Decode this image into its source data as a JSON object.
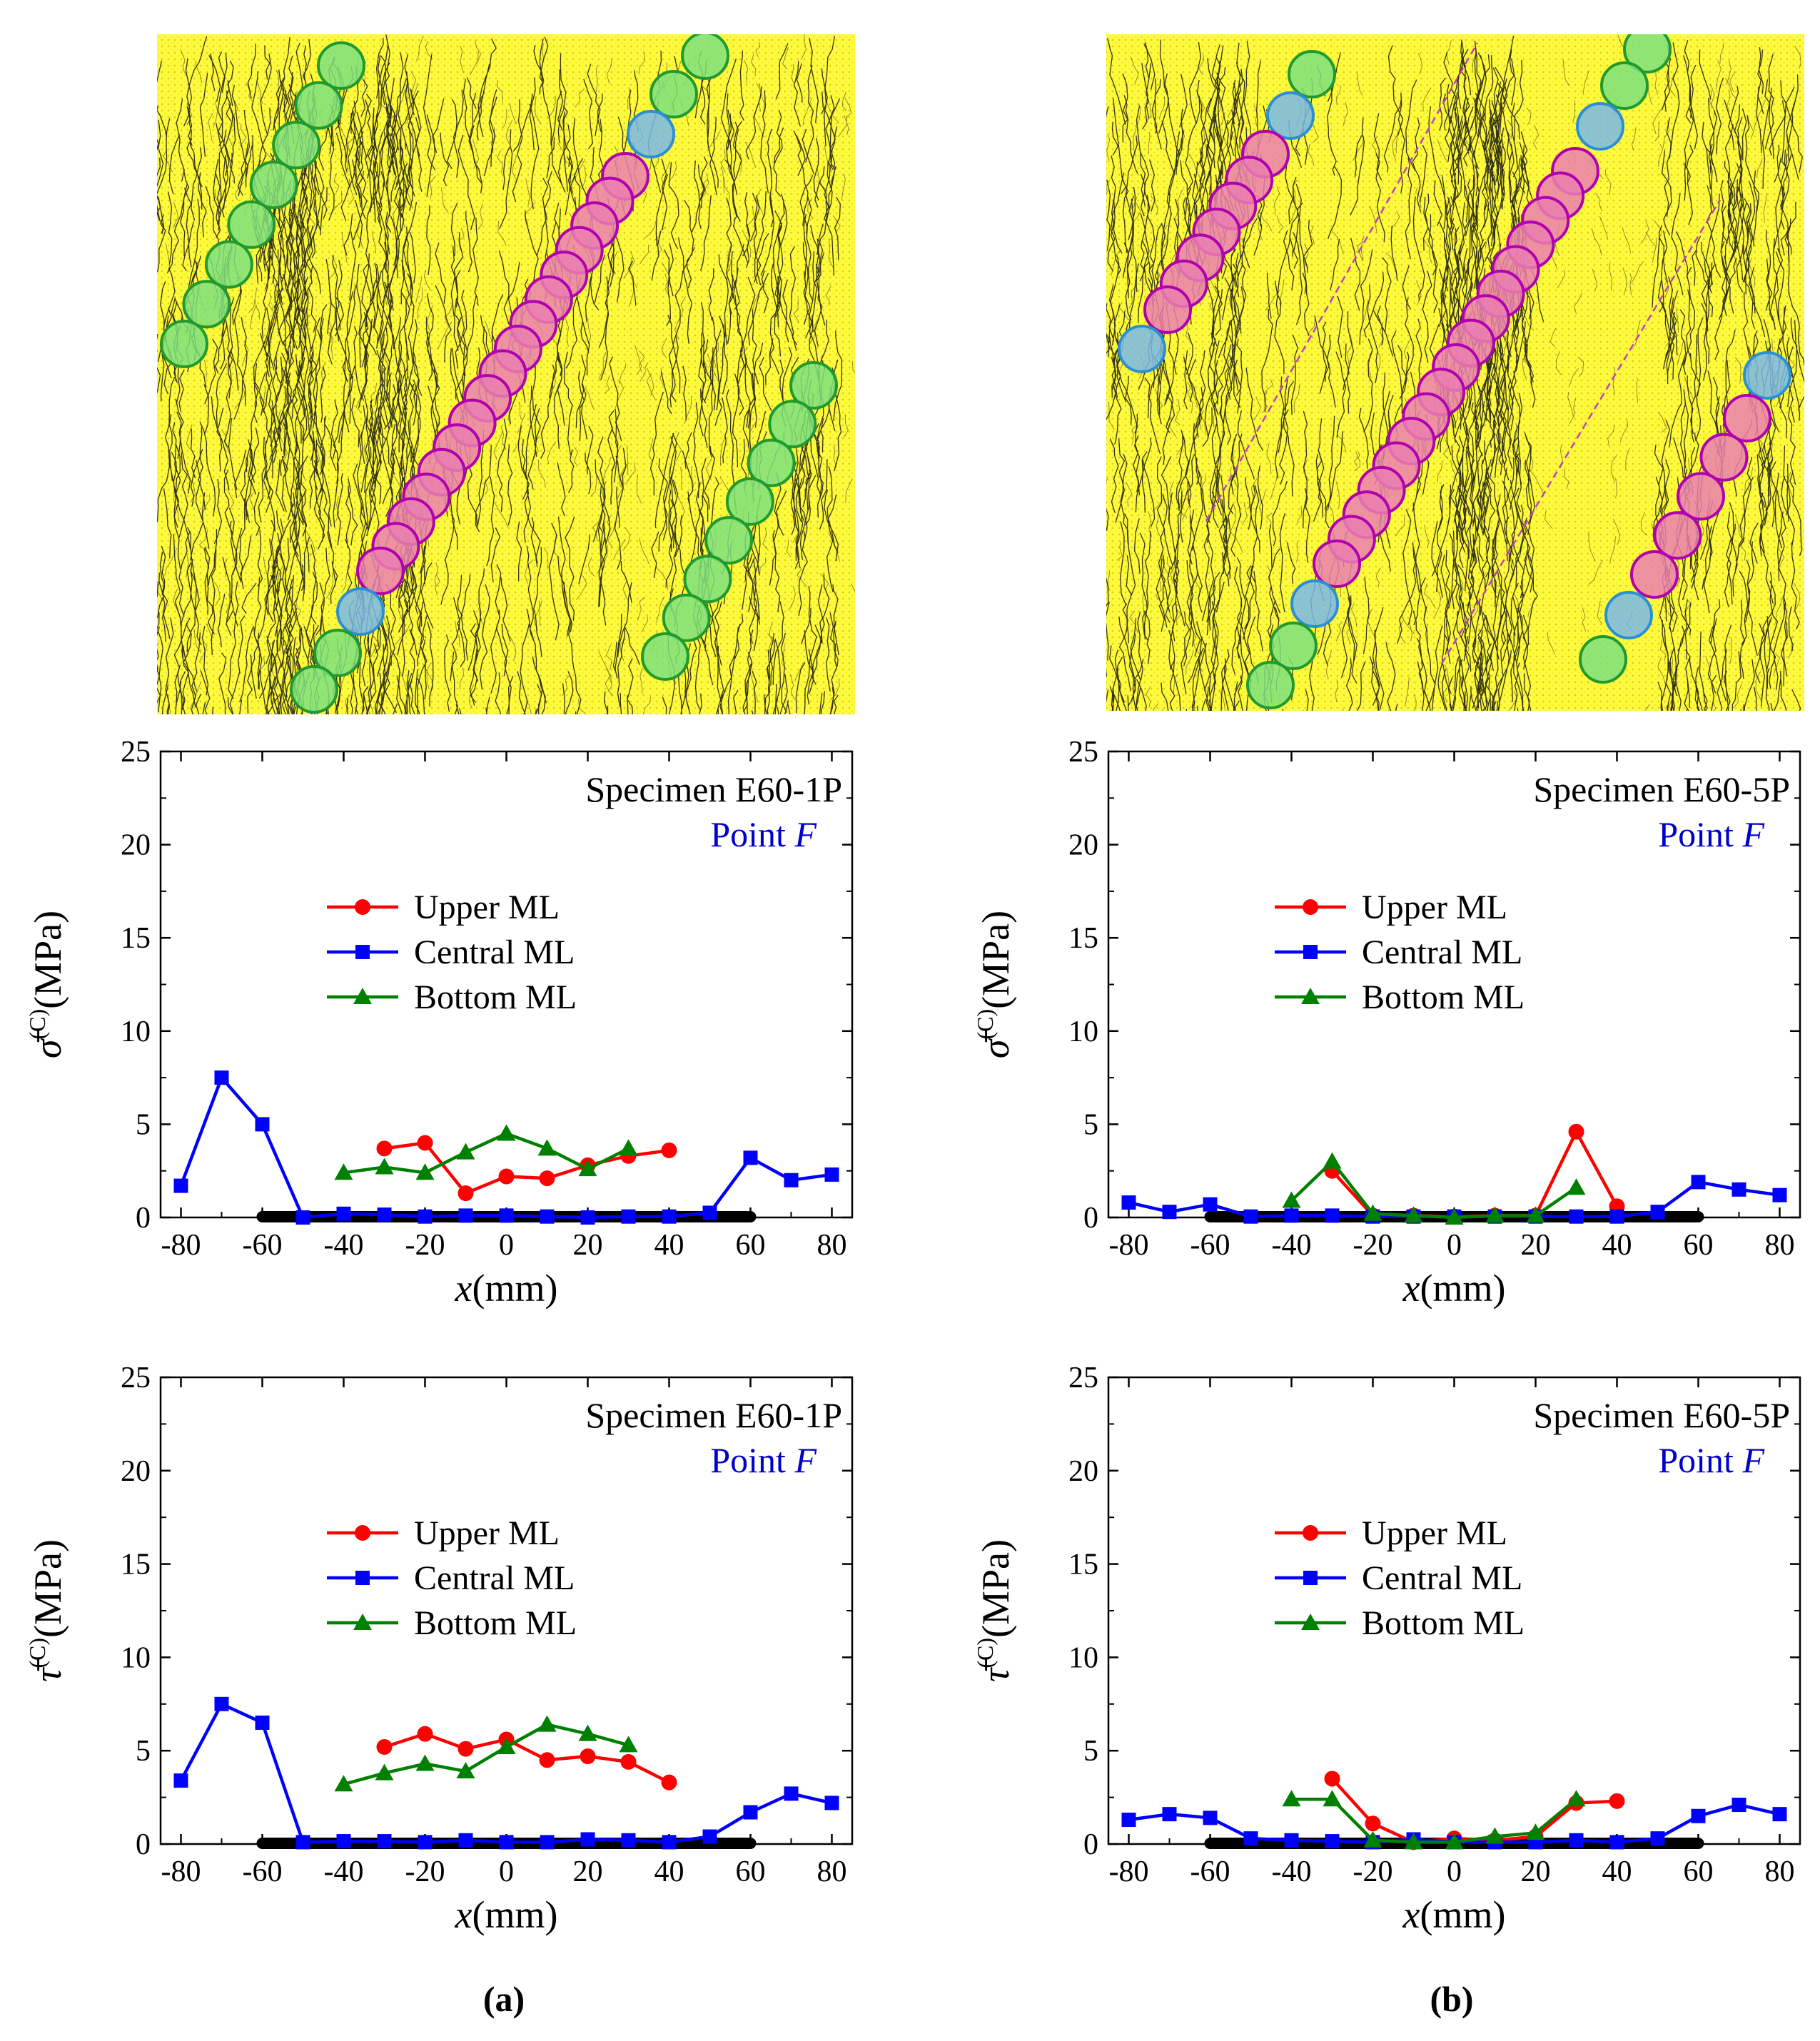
{
  "colors": {
    "upper": "#ff0000",
    "central": "#0000ff",
    "bottom": "#008000",
    "point": "#0000cc",
    "specimen_bg": "#fffb3a",
    "crack": "#111111",
    "circle_green": "#7ee07e",
    "circle_pink": "#ea7fb0",
    "circle_blue": "#78b9ea",
    "axis": "#000000"
  },
  "columns": [
    {
      "label": "(a)",
      "specimen_label": "Specimen E60-1P"
    },
    {
      "label": "(b)",
      "specimen_label": "Specimen E60-5P"
    }
  ],
  "chart_data": [
    {
      "id": "a-sigma",
      "type": "line",
      "title": "Specimen E60-1P",
      "subtitle": "Point F",
      "subtitle_prefix": "Point ",
      "subtitle_italic": "F",
      "ylabel_symbol": "σ̄",
      "ylabel_sup": "(C)",
      "ylabel_unit": "(MPa)",
      "xlabel_var": "x",
      "xlabel_unit": "(mm)",
      "xlim": [
        -85,
        85
      ],
      "ylim": [
        0,
        25
      ],
      "xticks": [
        -80,
        -60,
        -40,
        -20,
        0,
        20,
        40,
        60,
        80
      ],
      "yticks": [
        0,
        5,
        10,
        15,
        20,
        25
      ],
      "legend_position": "center-upper",
      "contact_bar": [
        -60,
        60
      ],
      "series": [
        {
          "name": "Upper ML",
          "marker": "circle",
          "x": [
            -30,
            -20,
            -10,
            0,
            10,
            20,
            30,
            40
          ],
          "y": [
            3.7,
            4.0,
            1.3,
            2.2,
            2.1,
            2.8,
            3.3,
            3.6
          ]
        },
        {
          "name": "Central ML",
          "marker": "square",
          "x": [
            -80,
            -70,
            -60,
            -50,
            -40,
            -30,
            -20,
            -10,
            0,
            10,
            20,
            30,
            40,
            50,
            60,
            70,
            80
          ],
          "y": [
            1.7,
            7.5,
            5.0,
            0.0,
            0.2,
            0.15,
            0.05,
            0.1,
            0.1,
            0.05,
            0.0,
            0.05,
            0.05,
            0.25,
            3.2,
            2.0,
            2.3
          ]
        },
        {
          "name": "Bottom ML",
          "marker": "triangle",
          "x": [
            -40,
            -30,
            -20,
            -10,
            0,
            10,
            20,
            30
          ],
          "y": [
            2.4,
            2.7,
            2.4,
            3.5,
            4.5,
            3.7,
            2.6,
            3.7
          ]
        }
      ]
    },
    {
      "id": "b-sigma",
      "type": "line",
      "title": "Specimen E60-5P",
      "subtitle": "Point F",
      "subtitle_prefix": "Point ",
      "subtitle_italic": "F",
      "ylabel_symbol": "σ̄",
      "ylabel_sup": "(C)",
      "ylabel_unit": "(MPa)",
      "xlabel_var": "x",
      "xlabel_unit": "(mm)",
      "xlim": [
        -85,
        85
      ],
      "ylim": [
        0,
        25
      ],
      "xticks": [
        -80,
        -60,
        -40,
        -20,
        0,
        20,
        40,
        60,
        80
      ],
      "yticks": [
        0,
        5,
        10,
        15,
        20,
        25
      ],
      "legend_position": "center-upper",
      "contact_bar": [
        -60,
        60
      ],
      "series": [
        {
          "name": "Upper ML",
          "marker": "circle",
          "x": [
            -30,
            -20,
            -10,
            0,
            10,
            20,
            30,
            40
          ],
          "y": [
            2.5,
            0.1,
            0.1,
            0.05,
            0.1,
            0.1,
            4.6,
            0.6
          ]
        },
        {
          "name": "Central ML",
          "marker": "square",
          "x": [
            -80,
            -70,
            -60,
            -50,
            -40,
            -30,
            -20,
            -10,
            0,
            10,
            20,
            30,
            40,
            50,
            60,
            70,
            80
          ],
          "y": [
            0.8,
            0.3,
            0.7,
            0.05,
            0.1,
            0.1,
            0.05,
            0.05,
            0.05,
            0.05,
            0.05,
            0.05,
            0.05,
            0.3,
            1.9,
            1.5,
            1.2
          ]
        },
        {
          "name": "Bottom ML",
          "marker": "triangle",
          "x": [
            -40,
            -30,
            -20,
            -10,
            0,
            10,
            20,
            30
          ],
          "y": [
            0.9,
            3.0,
            0.2,
            0.1,
            0.0,
            0.1,
            0.1,
            1.6
          ]
        }
      ]
    },
    {
      "id": "a-tau",
      "type": "line",
      "title": "Specimen E60-1P",
      "subtitle": "Point F",
      "subtitle_prefix": "Point ",
      "subtitle_italic": "F",
      "ylabel_symbol": "τ̄",
      "ylabel_sup": "(C)",
      "ylabel_unit": "(MPa)",
      "xlabel_var": "x",
      "xlabel_unit": "(mm)",
      "xlim": [
        -85,
        85
      ],
      "ylim": [
        0,
        25
      ],
      "xticks": [
        -80,
        -60,
        -40,
        -20,
        0,
        20,
        40,
        60,
        80
      ],
      "yticks": [
        0,
        5,
        10,
        15,
        20,
        25
      ],
      "legend_position": "center-upper",
      "contact_bar": [
        -60,
        60
      ],
      "series": [
        {
          "name": "Upper ML",
          "marker": "circle",
          "x": [
            -30,
            -20,
            -10,
            0,
            10,
            20,
            30,
            40
          ],
          "y": [
            5.2,
            5.9,
            5.1,
            5.6,
            4.5,
            4.7,
            4.4,
            3.3
          ]
        },
        {
          "name": "Central ML",
          "marker": "square",
          "x": [
            -80,
            -70,
            -60,
            -50,
            -40,
            -30,
            -20,
            -10,
            0,
            10,
            20,
            30,
            40,
            50,
            60,
            70,
            80
          ],
          "y": [
            3.4,
            7.5,
            6.5,
            0.1,
            0.15,
            0.15,
            0.1,
            0.2,
            0.1,
            0.1,
            0.25,
            0.2,
            0.1,
            0.4,
            1.7,
            2.7,
            2.2
          ]
        },
        {
          "name": "Bottom ML",
          "marker": "triangle",
          "x": [
            -40,
            -30,
            -20,
            -10,
            0,
            10,
            20,
            30
          ],
          "y": [
            3.2,
            3.8,
            4.3,
            3.9,
            5.2,
            6.4,
            5.9,
            5.3
          ]
        }
      ]
    },
    {
      "id": "b-tau",
      "type": "line",
      "title": "Specimen E60-5P",
      "subtitle": "Point F",
      "subtitle_prefix": "Point ",
      "subtitle_italic": "F",
      "ylabel_symbol": "τ̄",
      "ylabel_sup": "(C)",
      "ylabel_unit": "(MPa)",
      "xlabel_var": "x",
      "xlabel_unit": "(mm)",
      "xlim": [
        -85,
        85
      ],
      "ylim": [
        0,
        25
      ],
      "xticks": [
        -80,
        -60,
        -40,
        -20,
        0,
        20,
        40,
        60,
        80
      ],
      "yticks": [
        0,
        5,
        10,
        15,
        20,
        25
      ],
      "legend_position": "center-upper",
      "contact_bar": [
        -60,
        60
      ],
      "series": [
        {
          "name": "Upper ML",
          "marker": "circle",
          "x": [
            -30,
            -20,
            -10,
            0,
            10,
            20,
            30,
            40
          ],
          "y": [
            3.5,
            1.1,
            0.1,
            0.3,
            0.2,
            0.4,
            2.2,
            2.3
          ]
        },
        {
          "name": "Central ML",
          "marker": "square",
          "x": [
            -80,
            -70,
            -60,
            -50,
            -40,
            -30,
            -20,
            -10,
            0,
            10,
            20,
            30,
            40,
            50,
            60,
            70,
            80
          ],
          "y": [
            1.3,
            1.6,
            1.4,
            0.3,
            0.2,
            0.15,
            0.1,
            0.25,
            0.1,
            0.1,
            0.1,
            0.2,
            0.1,
            0.3,
            1.5,
            2.1,
            1.6
          ]
        },
        {
          "name": "Bottom ML",
          "marker": "triangle",
          "x": [
            -40,
            -30,
            -20,
            -10,
            0,
            10,
            20,
            30
          ],
          "y": [
            2.4,
            2.4,
            0.2,
            0.1,
            0.1,
            0.4,
            0.6,
            2.4
          ]
        }
      ]
    }
  ]
}
